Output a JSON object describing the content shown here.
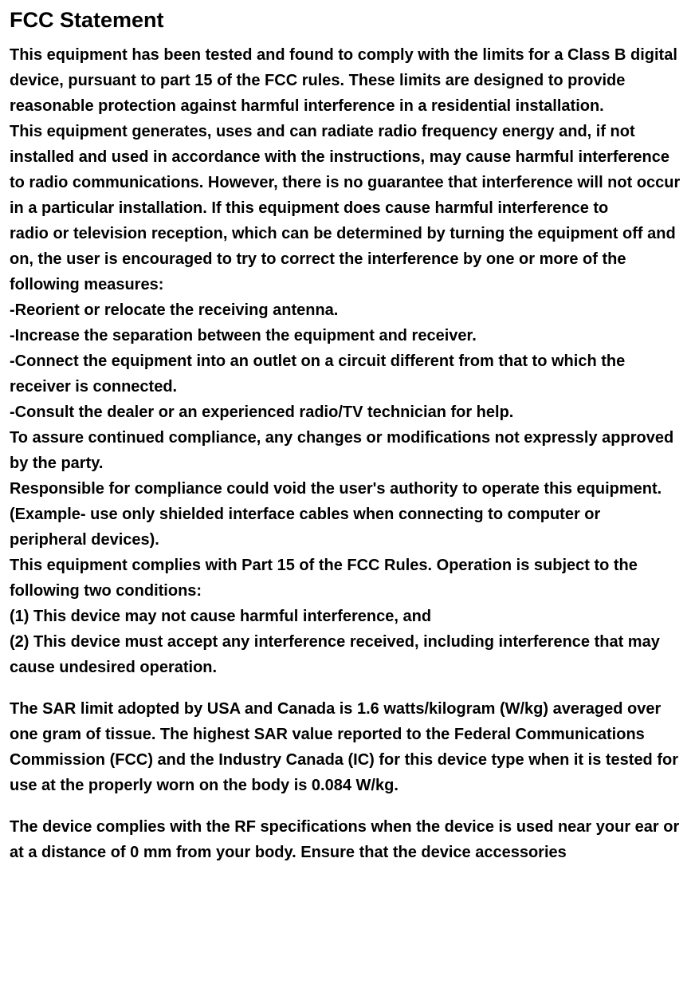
{
  "doc": {
    "heading": "FCC Statement",
    "p1": "This equipment has been tested and found to comply with the limits for a Class B digital device, pursuant to part 15 of the FCC rules. These limits are designed to provide reasonable protection against harmful interference in a residential installation.",
    "p2": "This equipment generates, uses and can radiate radio frequency energy and, if not installed and used in accordance with the instructions, may cause harmful interference",
    "p3": "to radio communications. However, there is no guarantee that interference will not occur in a particular installation. If this equipment does cause harmful interference to",
    "p4": "radio or television reception, which can be determined by turning the equipment off and on, the user is encouraged to try to correct the interference by one or more of the",
    "p5": "following measures:",
    "m1": "-Reorient or relocate the receiving antenna.",
    "m2": "-Increase the separation between the equipment and receiver.",
    "m3": "-Connect the equipment into an outlet on a circuit different from that to which the receiver is connected.",
    "m4": "-Consult the dealer or an experienced radio/TV technician for help.",
    "p6": "To assure continued compliance, any changes or modifications not expressly approved by the party.",
    "p7": "Responsible for compliance could void the user's authority to operate this equipment. (Example- use only shielded interface cables when connecting to computer or peripheral devices).",
    "p8": "This equipment complies with Part 15 of the FCC Rules. Operation is subject to the following two conditions:",
    "c1": "(1) This device may not cause harmful interference, and",
    "c2": "(2) This device must accept any interference received, including interference that may cause undesired operation.",
    "sar": "The SAR limit adopted by USA and Canada is 1.6 watts/kilogram (W/kg) averaged over one gram of tissue. The highest SAR value reported to the Federal Communications Commission (FCC) and the Industry Canada (IC) for this device type when it is tested for use at the properly worn on the body is 0.084 W/kg.",
    "rf": "The device complies with the RF specifications when the device is used near your ear or at a distance of 0 mm from your body. Ensure that the device accessories"
  },
  "style": {
    "background_color": "#ffffff",
    "text_color": "#000000",
    "heading_fontsize": 27,
    "body_fontsize": 20,
    "font_weight": "bold",
    "line_height": 1.6,
    "font_family": "Arial, Helvetica, sans-serif"
  }
}
